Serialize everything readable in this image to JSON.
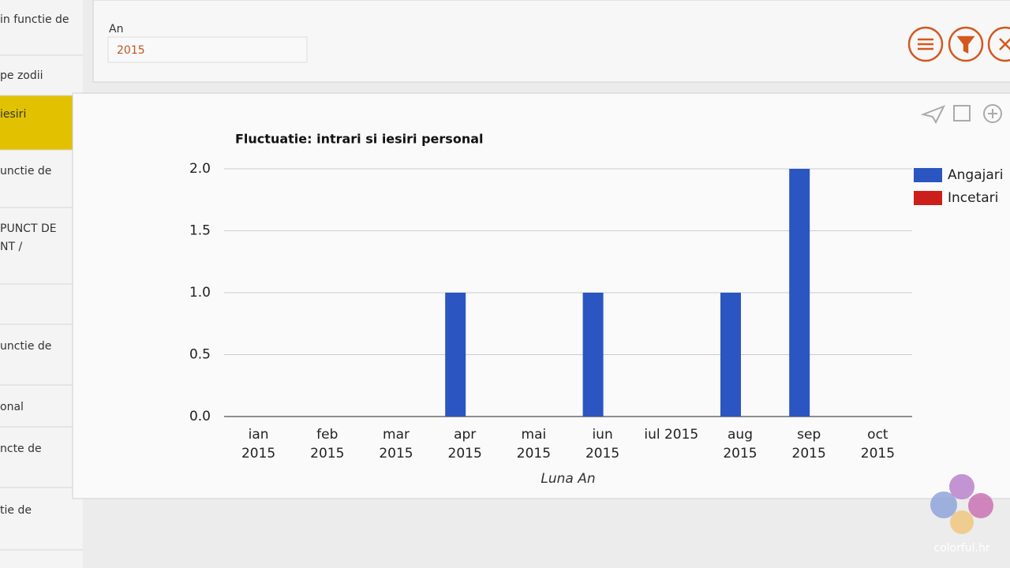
{
  "sidebar": {
    "items": [
      [
        "in functie de"
      ],
      [
        "pe zodii"
      ],
      [
        "iesiri"
      ],
      [
        "unctie de"
      ],
      [
        "PUNCT DE",
        "NT /"
      ],
      [
        "unctie de"
      ],
      [
        "onal"
      ],
      [
        "ncte de"
      ],
      [
        "tie de"
      ]
    ]
  },
  "filter": {
    "label": "An",
    "value": "2015"
  },
  "logo": "colorful.hr",
  "chart_data": {
    "type": "bar",
    "title": "Fluctuatie: intrari si iesiri personal",
    "x_label": "Luna An",
    "categories": [
      "ian 2015",
      "feb 2015",
      "mar 2015",
      "apr 2015",
      "mai 2015",
      "iun 2015",
      "iul 2015",
      "aug 2015",
      "sep 2015",
      "oct 2015"
    ],
    "series": [
      {
        "name": "Angajari",
        "color": "#2b55c0",
        "values": [
          0,
          0,
          0,
          1,
          0,
          1,
          0,
          1,
          2,
          0
        ]
      },
      {
        "name": "Incetari",
        "color": "#cc1f1a",
        "values": [
          0,
          0,
          0,
          0,
          0,
          0,
          0,
          0,
          0,
          0
        ]
      }
    ],
    "ylim": [
      0,
      2
    ],
    "yticks": [
      {
        "value": 0,
        "label": "0.0"
      },
      0.5,
      {
        "value": 1,
        "label": "1.0"
      },
      1.5,
      {
        "value": 2,
        "label": "2.0"
      }
    ],
    "grid": true,
    "legend": "right"
  }
}
